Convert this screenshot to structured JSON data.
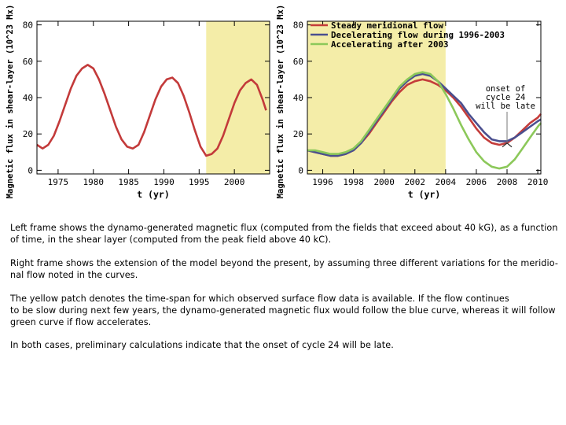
{
  "chart_data": [
    {
      "type": "line",
      "panel": "left",
      "xlabel": "t (yr)",
      "ylabel": "Magnetic flux in shear-layer (10^23 Mx)",
      "xlim": [
        1972,
        2005
      ],
      "ylim": [
        -2,
        82
      ],
      "xticks": [
        1975,
        1980,
        1985,
        1990,
        1995,
        2000
      ],
      "yticks": [
        0,
        20,
        40,
        60,
        80
      ],
      "highlight_span": [
        1996,
        2005
      ],
      "series": [
        {
          "name": "Magnetic flux",
          "color": "#c33a3a",
          "x": [
            1972.0,
            1972.8,
            1973.6,
            1974.4,
            1975.2,
            1976.0,
            1976.8,
            1977.6,
            1978.4,
            1979.2,
            1980.0,
            1980.8,
            1981.6,
            1982.4,
            1983.2,
            1984.0,
            1984.8,
            1985.6,
            1986.4,
            1987.2,
            1988.0,
            1988.8,
            1989.6,
            1990.4,
            1991.2,
            1992.0,
            1992.8,
            1993.6,
            1994.4,
            1995.2,
            1996.0,
            1996.8,
            1997.6,
            1998.4,
            1999.2,
            2000.0,
            2000.8,
            2001.6,
            2002.4,
            2003.2,
            2004.0,
            2004.5
          ],
          "y": [
            14,
            12,
            14,
            19,
            27,
            36,
            45,
            52,
            56,
            58,
            56,
            50,
            42,
            33,
            24,
            17,
            13,
            12,
            14,
            21,
            30,
            39,
            46,
            50,
            51,
            48,
            41,
            32,
            22,
            13,
            8,
            9,
            12,
            19,
            28,
            37,
            44,
            48,
            50,
            47,
            39,
            33
          ]
        }
      ]
    },
    {
      "type": "line",
      "panel": "right",
      "xlabel": "t (yr)",
      "ylabel": "Magnetic flux in shear-layer (10^23 Mx)",
      "xlim": [
        1995,
        2010.2
      ],
      "ylim": [
        -2,
        82
      ],
      "xticks": [
        1996,
        1998,
        2000,
        2002,
        2004,
        2006,
        2008,
        2010
      ],
      "yticks": [
        0,
        20,
        40,
        60,
        80
      ],
      "highlight_span": [
        1995,
        2004
      ],
      "annotation": {
        "text": [
          "onset of",
          "cycle 24",
          "will be late"
        ],
        "points_at": [
          2008,
          15
        ]
      },
      "series": [
        {
          "name": "Steady meridional flow",
          "color": "#c43c3a",
          "x": [
            1995.0,
            1995.5,
            1996.0,
            1996.5,
            1997.0,
            1997.5,
            1998.0,
            1998.5,
            1999.0,
            1999.5,
            2000.0,
            2000.5,
            2001.0,
            2001.5,
            2002.0,
            2002.5,
            2003.0,
            2003.5,
            2004.0,
            2004.5,
            2005.0,
            2005.5,
            2006.0,
            2006.5,
            2007.0,
            2007.5,
            2008.0,
            2008.5,
            2009.0,
            2009.5,
            2010.0,
            2010.2
          ],
          "y": [
            11,
            10,
            9,
            8,
            8,
            9,
            11,
            15,
            20,
            26,
            32,
            38,
            43,
            47,
            49,
            50,
            49,
            47,
            44,
            40,
            35,
            29,
            23,
            18,
            15,
            14,
            15,
            18,
            22,
            26,
            29,
            31
          ]
        },
        {
          "name": "Decelerating flow during 1996-2003",
          "color": "#4a4f8f",
          "x": [
            1995.0,
            1995.5,
            1996.0,
            1996.5,
            1997.0,
            1997.5,
            1998.0,
            1998.5,
            1999.0,
            1999.5,
            2000.0,
            2000.5,
            2001.0,
            2001.5,
            2002.0,
            2002.5,
            2003.0,
            2003.5,
            2004.0,
            2004.5,
            2005.0,
            2005.5,
            2006.0,
            2006.5,
            2007.0,
            2007.5,
            2008.0,
            2008.5,
            2009.0,
            2009.5,
            2010.0,
            2010.2
          ],
          "y": [
            11,
            10,
            9,
            8,
            8,
            9,
            11,
            15,
            21,
            27,
            33,
            39,
            45,
            49,
            52,
            53,
            52,
            49,
            45,
            41,
            37,
            31,
            26,
            21,
            17,
            16,
            16,
            18,
            21,
            24,
            27,
            28
          ]
        },
        {
          "name": "Accelerating after 2003",
          "color": "#8cc85a",
          "x": [
            1995.0,
            1995.5,
            1996.0,
            1996.5,
            1997.0,
            1997.5,
            1998.0,
            1998.5,
            1999.0,
            1999.5,
            2000.0,
            2000.5,
            2001.0,
            2001.5,
            2002.0,
            2002.5,
            2003.0,
            2003.5,
            2004.0,
            2004.5,
            2005.0,
            2005.5,
            2006.0,
            2006.5,
            2007.0,
            2007.5,
            2008.0,
            2008.5,
            2009.0,
            2009.5,
            2010.0,
            2010.2
          ],
          "y": [
            11,
            11,
            10,
            9,
            9,
            10,
            12,
            16,
            22,
            28,
            34,
            40,
            46,
            50,
            53,
            54,
            53,
            49,
            42,
            34,
            25,
            17,
            10,
            5,
            2,
            1,
            2,
            6,
            12,
            18,
            24,
            26
          ]
        }
      ]
    }
  ],
  "text": {
    "p1": [
      "Left frame shows the dynamo-generated magnetic flux (computed from the fields that exceed about 40 kG), as a function",
      "of time, in the shear layer (computed from the peak field above 40 kC)."
    ],
    "p2": [
      "Right frame shows the extension of the model beyond the present, by assuming three different variations for the meridio-",
      "nal flow noted in the curves."
    ],
    "p3": [
      "The yellow patch denotes the time-span for which observed surface flow data is available.  If the flow continues",
      "to be slow during next few years, the dynamo-generated magnetic flux would follow the blue curve, whereas it will follow",
      "green curve if flow accelerates."
    ],
    "p4": [
      "In both cases, preliminary calculations indicate that the onset of cycle 24 will be late."
    ]
  }
}
